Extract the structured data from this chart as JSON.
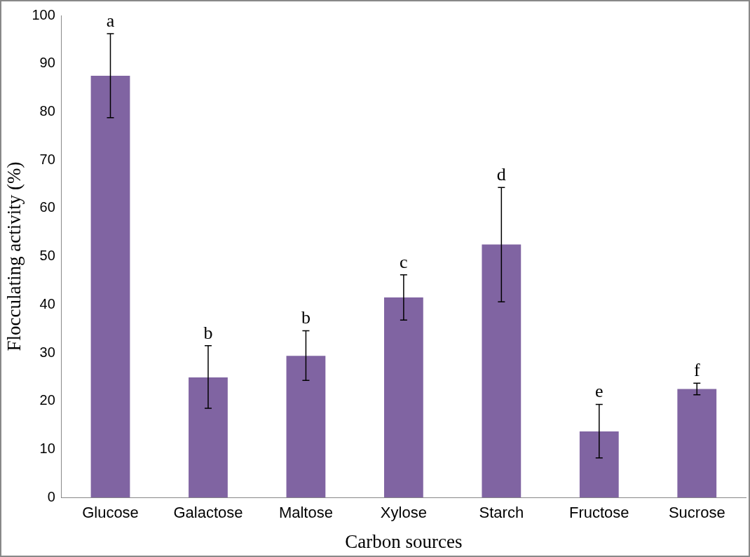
{
  "chart_data": {
    "type": "bar",
    "xlabel": "Carbon sources",
    "ylabel": "Flocculating activity (%)",
    "categories": [
      "Glucose",
      "Galactose",
      "Maltose",
      "Xylose",
      "Starch",
      "Fructose",
      "Sucrose"
    ],
    "values": [
      87.5,
      24.9,
      29.4,
      41.5,
      52.5,
      13.7,
      22.5
    ],
    "errors": [
      [
        78.8,
        96.2
      ],
      [
        18.5,
        31.5
      ],
      [
        24.3,
        34.6
      ],
      [
        36.8,
        46.2
      ],
      [
        40.6,
        64.3
      ],
      [
        8.2,
        19.3
      ],
      [
        21.3,
        23.7
      ]
    ],
    "color": "#8064a2",
    "ylim": [
      0,
      100
    ],
    "yticks": [
      0,
      10,
      20,
      30,
      40,
      50,
      60,
      70,
      80,
      90,
      100
    ],
    "grid": false,
    "legend": false,
    "annotations": [
      {
        "text": "a",
        "x": "Glucose",
        "y": 96.2
      },
      {
        "text": "b",
        "x": "Galactose",
        "y": 31.5
      },
      {
        "text": "b",
        "x": "Maltose",
        "y": 34.6
      },
      {
        "text": "c",
        "x": "Xylose",
        "y": 46.2
      },
      {
        "text": "d",
        "x": "Starch",
        "y": 64.3
      },
      {
        "text": "e",
        "x": "Fructose",
        "y": 19.3
      },
      {
        "text": "f",
        "x": "Sucrose",
        "y": 23.7
      }
    ]
  }
}
